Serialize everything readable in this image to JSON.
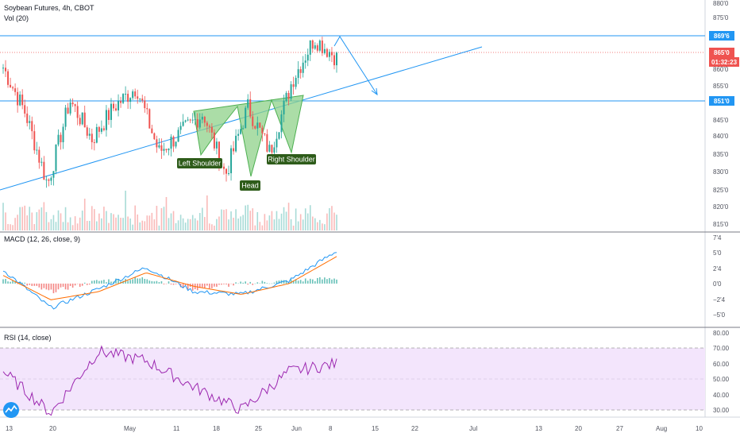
{
  "header": {
    "title": "Soybean Futures, 4h, CBOT",
    "vol_label": "Vol (20)"
  },
  "macd": {
    "label": "MACD (12, 26, close, 9)"
  },
  "rsi": {
    "label": "RSI (14, close)"
  },
  "price_axis": {
    "ticks": [
      "880'0",
      "875'0",
      "860'0",
      "855'0",
      "850'0",
      "845'0",
      "840'0",
      "835'0",
      "830'0",
      "825'0",
      "820'0",
      "815'0"
    ],
    "resistance_tag": "869'6",
    "last_price_tag": "865'0",
    "countdown_tag": "01:32:23",
    "support_tag": "851'0"
  },
  "macd_axis": {
    "ticks": [
      "7'4",
      "5'0",
      "2'4",
      "0'0",
      "−2'4",
      "−5'0"
    ]
  },
  "rsi_axis": {
    "ticks": [
      "80.00",
      "70.00",
      "60.00",
      "50.00",
      "40.00",
      "30.00"
    ]
  },
  "time_axis": {
    "ticks": [
      "13",
      "20",
      "May",
      "11",
      "18",
      "25",
      "Jun",
      "8",
      "15",
      "22",
      "Jul",
      "13",
      "20",
      "27",
      "Aug",
      "10"
    ]
  },
  "annotations": {
    "left_shoulder": "Left Shoulder",
    "head": "Head",
    "right_shoulder": "Right Shoulder"
  },
  "colors": {
    "up": "#26a69a",
    "down": "#ef5350",
    "trendline": "#2196f3",
    "pattern_fill": "#8fd18a",
    "label_bg": "#2e5c1a",
    "macd_line": "#2196f3",
    "signal_line": "#ff6d00",
    "rsi_line": "#9c27b0",
    "rsi_band": "#f3e5fc"
  },
  "chart_data": [
    {
      "type": "candlestick",
      "title": "Soybean Futures, 4h, CBOT",
      "ylim": [
        812,
        882
      ],
      "key_levels": {
        "resistance": 869.75,
        "last": 865.0,
        "support": 851.0
      },
      "trend_points": [
        {
          "label": "13",
          "close": 862
        },
        {
          "label": "~17",
          "close": 848
        },
        {
          "label": "20",
          "close": 826
        },
        {
          "label": "~28",
          "close": 852
        },
        {
          "label": "May",
          "close": 840
        },
        {
          "label": "~6",
          "close": 850
        },
        {
          "label": "11",
          "close": 856
        },
        {
          "label": "~14",
          "close": 836
        },
        {
          "label": "18",
          "close": 842
        },
        {
          "label": "~22",
          "close": 848
        },
        {
          "label": "25",
          "close": 829
        },
        {
          "label": "~29",
          "close": 850
        },
        {
          "label": "Jun",
          "close": 836
        },
        {
          "label": "~5",
          "close": 858
        },
        {
          "label": "~7",
          "close": 871
        },
        {
          "label": "8",
          "close": 865
        }
      ]
    },
    {
      "type": "line",
      "name": "MACD (12, 26, close, 9)",
      "ylim": [
        -7.5,
        8.5
      ],
      "x": [
        "13",
        "20",
        "May",
        "11",
        "18",
        "25",
        "Jun",
        "8"
      ],
      "series": [
        {
          "name": "MACD",
          "values": [
            2.5,
            -4.5,
            -1.0,
            3.0,
            -1.5,
            -2.0,
            0.5,
            6.0
          ]
        },
        {
          "name": "Signal",
          "values": [
            1.5,
            -3.0,
            -1.5,
            2.0,
            -0.5,
            -2.0,
            0.0,
            5.0
          ]
        }
      ]
    },
    {
      "type": "line",
      "name": "RSI (14, close)",
      "ylim": [
        25,
        80
      ],
      "bands": [
        30,
        70
      ],
      "x": [
        "13",
        "20",
        "May",
        "11",
        "18",
        "25",
        "Jun",
        "8"
      ],
      "values": [
        55,
        28,
        68,
        62,
        45,
        30,
        55,
        60
      ]
    }
  ]
}
